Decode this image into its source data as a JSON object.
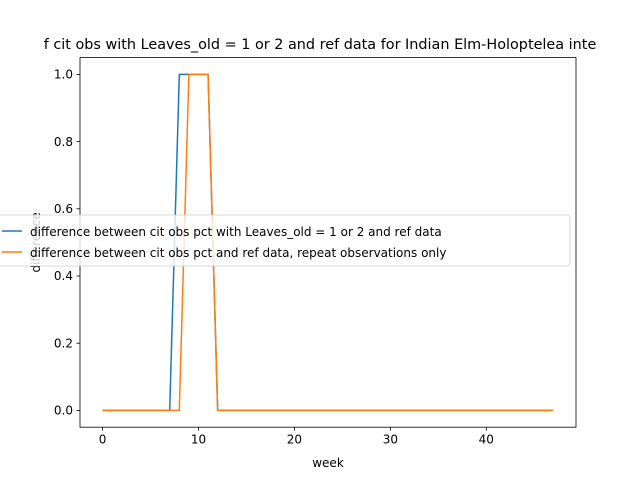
{
  "chart_data": {
    "type": "line",
    "title": "f cit obs with Leaves_old = 1 or 2 and ref data for Indian Elm-Holoptelea inte",
    "xlabel": "week",
    "ylabel": "difference",
    "xlim": [
      -2.35,
      49.35
    ],
    "ylim": [
      -0.05,
      1.05
    ],
    "x_ticks": [
      0,
      10,
      20,
      30,
      40
    ],
    "y_ticks": [
      0.0,
      0.2,
      0.4,
      0.6,
      0.8,
      1.0
    ],
    "x_tick_labels": [
      "0",
      "10",
      "20",
      "30",
      "40"
    ],
    "y_tick_labels": [
      "0.0",
      "0.2",
      "0.4",
      "0.6",
      "0.8",
      "1.0"
    ],
    "grid": false,
    "legend_position": "center-right",
    "x": [
      0,
      1,
      2,
      3,
      4,
      5,
      6,
      7,
      8,
      9,
      10,
      11,
      12,
      13,
      14,
      15,
      16,
      17,
      18,
      19,
      20,
      21,
      22,
      23,
      24,
      25,
      26,
      27,
      28,
      29,
      30,
      31,
      32,
      33,
      34,
      35,
      36,
      37,
      38,
      39,
      40,
      41,
      42,
      43,
      44,
      45,
      46,
      47
    ],
    "series": [
      {
        "name": "difference between cit obs pct with Leaves_old = 1 or 2 and ref data",
        "color": "#1f77b4",
        "values": [
          0,
          0,
          0,
          0,
          0,
          0,
          0,
          0,
          1,
          1,
          1,
          1,
          0,
          0,
          0,
          0,
          0,
          0,
          0,
          0,
          0,
          0,
          0,
          0,
          0,
          0,
          0,
          0,
          0,
          0,
          0,
          0,
          0,
          0,
          0,
          0,
          0,
          0,
          0,
          0,
          0,
          0,
          0,
          0,
          0,
          0,
          0,
          0
        ]
      },
      {
        "name": "difference between cit obs pct and ref data, repeat observations only",
        "color": "#ff7f0e",
        "values": [
          0,
          0,
          0,
          0,
          0,
          0,
          0,
          0,
          0,
          1,
          1,
          1,
          0,
          0,
          0,
          0,
          0,
          0,
          0,
          0,
          0,
          0,
          0,
          0,
          0,
          0,
          0,
          0,
          0,
          0,
          0,
          0,
          0,
          0,
          0,
          0,
          0,
          0,
          0,
          0,
          0,
          0,
          0,
          0,
          0,
          0,
          0,
          0
        ]
      }
    ]
  }
}
